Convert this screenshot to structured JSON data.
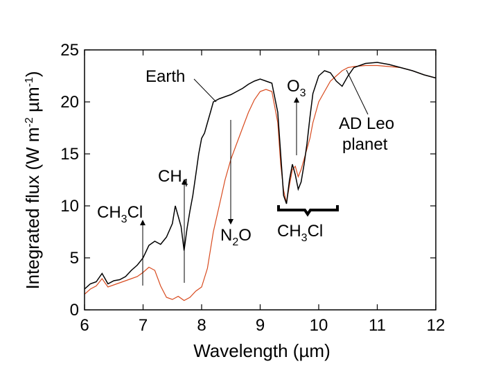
{
  "chart_data": {
    "type": "line",
    "xlabel": "Wavelength (µm)",
    "ylabel": "Integrated flux (W m-2 µm-1)",
    "xlim": [
      6,
      12
    ],
    "ylim": [
      0,
      25
    ],
    "xticks": [
      6,
      7,
      8,
      9,
      10,
      11,
      12
    ],
    "yticks": [
      0,
      5,
      10,
      15,
      20,
      25
    ],
    "grid": false,
    "series": [
      {
        "name": "Earth",
        "color": "#000000",
        "x": [
          6.0,
          6.1,
          6.2,
          6.3,
          6.35,
          6.4,
          6.5,
          6.6,
          6.7,
          6.8,
          6.9,
          7.0,
          7.1,
          7.2,
          7.3,
          7.4,
          7.5,
          7.55,
          7.6,
          7.65,
          7.7,
          7.75,
          7.8,
          7.85,
          7.9,
          7.95,
          8.0,
          8.05,
          8.1,
          8.15,
          8.2,
          8.3,
          8.4,
          8.5,
          8.6,
          8.7,
          8.8,
          8.9,
          9.0,
          9.1,
          9.2,
          9.3,
          9.35,
          9.4,
          9.45,
          9.5,
          9.55,
          9.6,
          9.65,
          9.7,
          9.75,
          9.8,
          9.85,
          9.9,
          10.0,
          10.1,
          10.2,
          10.3,
          10.4,
          10.5,
          10.6,
          10.8,
          11.0,
          11.2,
          11.4,
          11.6,
          11.8,
          12.0
        ],
        "y": [
          2.0,
          2.5,
          2.7,
          3.5,
          3.0,
          2.5,
          2.8,
          2.9,
          3.2,
          3.8,
          4.3,
          5.0,
          6.2,
          6.6,
          6.3,
          7.0,
          8.3,
          10.0,
          9.0,
          8.0,
          5.7,
          7.8,
          9.5,
          11.0,
          13.0,
          15.0,
          16.5,
          17.0,
          18.0,
          19.0,
          20.0,
          20.3,
          20.5,
          20.7,
          21.0,
          21.3,
          21.7,
          22.0,
          22.2,
          22.0,
          21.8,
          19.0,
          15.0,
          11.0,
          10.2,
          12.5,
          14.0,
          13.0,
          11.6,
          12.3,
          14.0,
          16.0,
          18.5,
          20.8,
          22.5,
          23.0,
          22.8,
          22.0,
          21.5,
          22.5,
          23.3,
          23.7,
          23.8,
          23.6,
          23.3,
          23.0,
          22.6,
          22.3
        ]
      },
      {
        "name": "AD Leo planet",
        "color": "#d84a1e",
        "x": [
          6.0,
          6.1,
          6.2,
          6.3,
          6.4,
          6.5,
          6.6,
          6.7,
          6.8,
          6.9,
          7.0,
          7.1,
          7.2,
          7.3,
          7.4,
          7.5,
          7.6,
          7.7,
          7.8,
          7.9,
          8.0,
          8.1,
          8.2,
          8.3,
          8.4,
          8.5,
          8.6,
          8.7,
          8.8,
          8.9,
          9.0,
          9.1,
          9.2,
          9.3,
          9.35,
          9.4,
          9.45,
          9.5,
          9.55,
          9.6,
          9.65,
          9.7,
          9.75,
          9.8,
          9.85,
          9.9,
          9.95,
          10.0,
          10.1,
          10.2,
          10.3,
          10.4,
          10.5,
          10.6,
          10.8,
          11.0,
          11.2,
          11.4,
          11.6,
          11.8,
          12.0
        ],
        "y": [
          1.5,
          2.0,
          2.3,
          3.0,
          2.2,
          2.4,
          2.6,
          2.8,
          3.0,
          3.2,
          3.6,
          4.1,
          3.8,
          2.3,
          1.2,
          1.0,
          1.3,
          0.9,
          1.2,
          1.8,
          2.2,
          4.0,
          7.5,
          10.0,
          12.5,
          14.5,
          16.0,
          17.5,
          19.0,
          20.2,
          21.0,
          21.2,
          21.0,
          18.0,
          14.0,
          11.5,
          10.3,
          12.0,
          13.5,
          13.8,
          12.8,
          13.5,
          14.5,
          15.5,
          16.5,
          18.0,
          19.0,
          20.0,
          21.0,
          22.0,
          22.5,
          23.0,
          23.3,
          23.4,
          23.5,
          23.5,
          23.4,
          23.3,
          23.0,
          22.6,
          22.3
        ]
      }
    ],
    "annotations": {
      "earth": "Earth",
      "ad_leo_line1": "AD Leo",
      "ad_leo_line2": "planet",
      "o3_main": "O",
      "o3_sub": "3",
      "ch4_main": "CH",
      "ch4_sub": "4",
      "ch3cl_left_a": "CH",
      "ch3cl_left_sub": "3",
      "ch3cl_left_b": "Cl",
      "n2o_a": "N",
      "n2o_sub": "2",
      "n2o_b": "O",
      "ch3cl_right_a": "CH",
      "ch3cl_right_sub": "3",
      "ch3cl_right_b": "Cl"
    }
  }
}
